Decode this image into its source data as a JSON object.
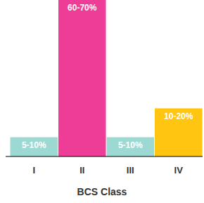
{
  "chart_data": {
    "type": "bar",
    "x_label": "BCS Class",
    "categories": [
      "I",
      "II",
      "III",
      "IV"
    ],
    "values": [
      8,
      65,
      8,
      20
    ],
    "value_labels": [
      "5-10%",
      "60-70%",
      "5-10%",
      "10-20%"
    ],
    "colors": [
      "#9dd9d3",
      "#ee3d96",
      "#9dd9d3",
      "#ffc511"
    ],
    "ylim": [
      0,
      65
    ],
    "data_labels": true,
    "tick_labels": "x",
    "grid": false
  }
}
